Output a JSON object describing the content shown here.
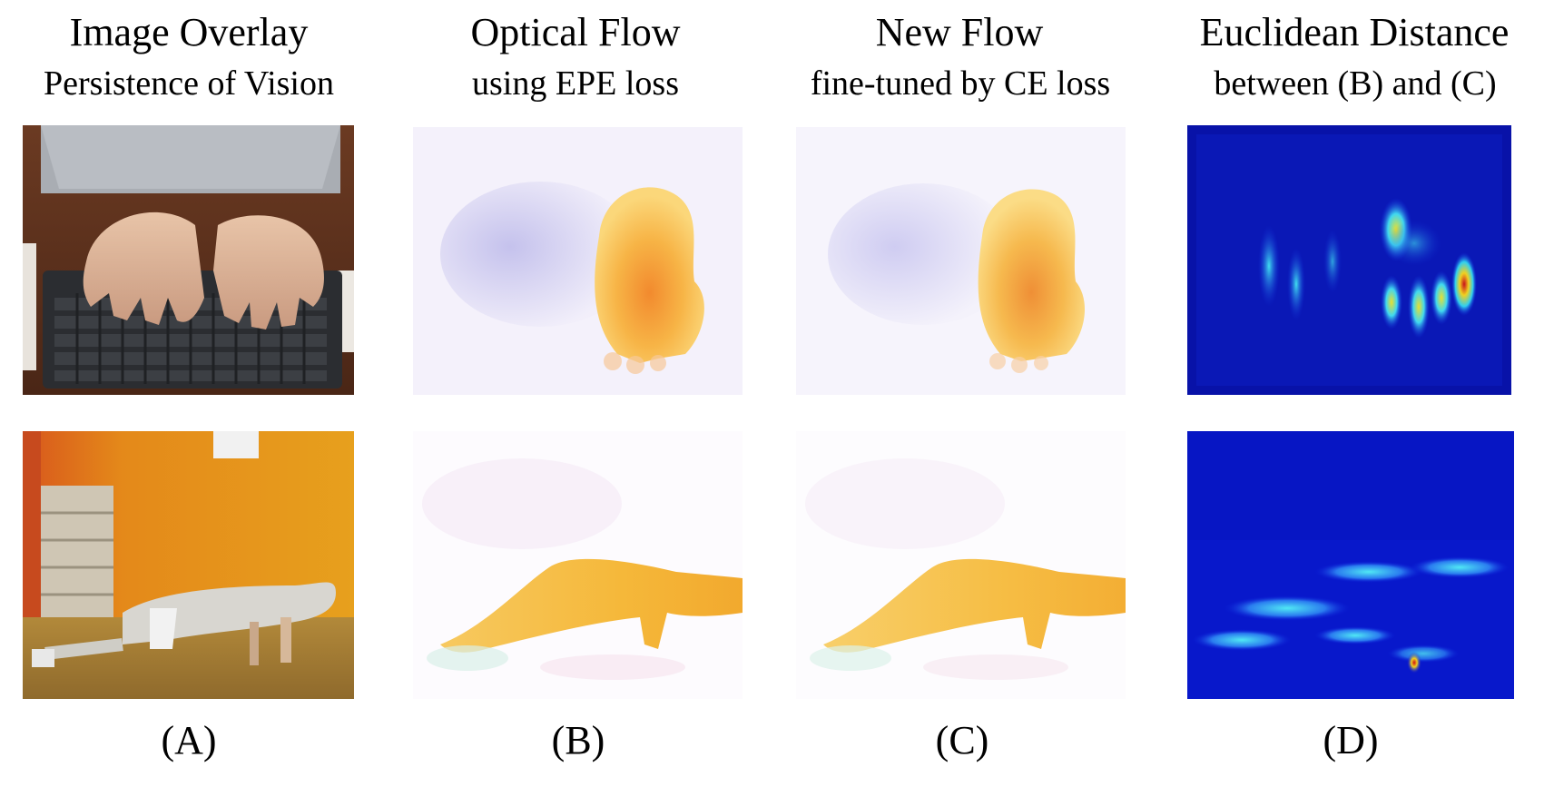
{
  "columns": [
    {
      "title": "Image Overlay",
      "subtitle": "Persistence of Vision",
      "label": "(A)"
    },
    {
      "title": "Optical Flow",
      "subtitle": "using EPE loss",
      "label": "(B)"
    },
    {
      "title": "New Flow",
      "subtitle": "fine-tuned by CE loss",
      "label": "(C)"
    },
    {
      "title": "Euclidean Distance",
      "subtitle": "between (B) and (C)",
      "label": "(D)"
    }
  ],
  "colors": {
    "flow_orange": "#f5a623",
    "flow_yellow": "#f7c948",
    "flow_violet": "#b7b4e8",
    "heatmap_blue": "#0a1bd8",
    "heatmap_cyan": "#38d6f0",
    "heatmap_red": "#d01010"
  }
}
